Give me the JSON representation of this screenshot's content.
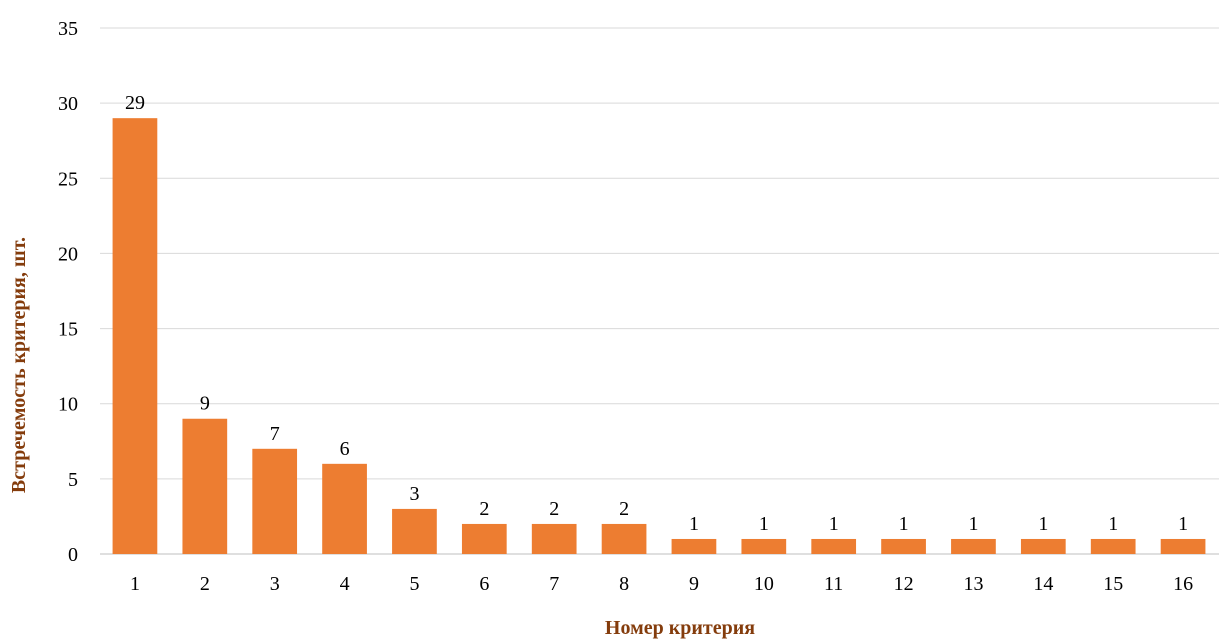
{
  "chart_data": {
    "type": "bar",
    "categories": [
      "1",
      "2",
      "3",
      "4",
      "5",
      "6",
      "7",
      "8",
      "9",
      "10",
      "11",
      "12",
      "13",
      "14",
      "15",
      "16"
    ],
    "values": [
      29,
      9,
      7,
      6,
      3,
      2,
      2,
      2,
      1,
      1,
      1,
      1,
      1,
      1,
      1,
      1
    ],
    "data_labels": [
      "29",
      "9",
      "7",
      "6",
      "3",
      "2",
      "2",
      "2",
      "1",
      "1",
      "1",
      "1",
      "1",
      "1",
      "1",
      "1"
    ],
    "xlabel": "Номер критерия",
    "ylabel": "Встречемость критерия, шт.",
    "ylim": [
      0,
      35
    ],
    "yticks": [
      0,
      5,
      10,
      15,
      20,
      25,
      30,
      35
    ],
    "grid": true,
    "legend": "none",
    "bar_color": "#ed7d31",
    "axis_title_color": "#843c0c"
  }
}
